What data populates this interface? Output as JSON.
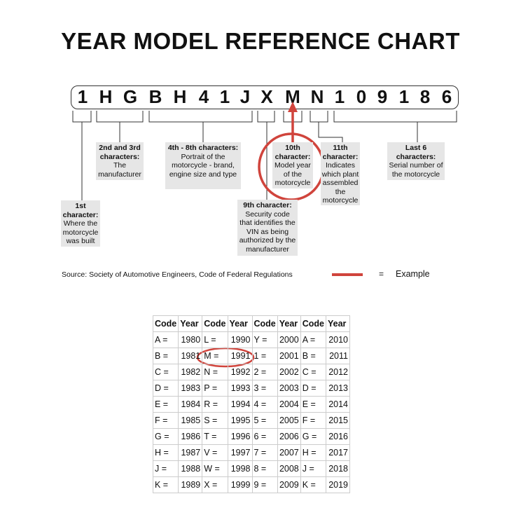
{
  "title": "YEAR MODEL REFERENCE CHART",
  "vin": [
    "1",
    "H",
    "G",
    "B",
    "H",
    "4",
    "1",
    "J",
    "X",
    "M",
    "N",
    "1",
    "0",
    "9",
    "1",
    "8",
    "6"
  ],
  "labels": {
    "first": {
      "head": "1st character:",
      "body": "Where the motorcycle was built"
    },
    "second_third": {
      "head": "2nd and 3rd characters:",
      "body": "The manufacturer"
    },
    "fourth_eighth": {
      "head": "4th - 8th characters:",
      "body": "Portrait of the motorcycle - brand, engine size and type"
    },
    "ninth": {
      "head": "9th character:",
      "body": "Security code that identifies the VIN as being authorized by the manufacturer"
    },
    "tenth": {
      "head": "10th character:",
      "body": "Model year of the motorcycle"
    },
    "eleventh": {
      "head": "11th character:",
      "body": "Indicates which plant assembled the motorcycle"
    },
    "last_six": {
      "head": "Last 6 characters:",
      "body": "Serial number of the motorcycle"
    }
  },
  "source": "Source:  Society of Automotive Engineers, Code of Federal Regulations",
  "legend": {
    "equals": "=",
    "example": "Example",
    "color": "#d0443c"
  },
  "table": {
    "headers": [
      "Code",
      "Year",
      "Code",
      "Year",
      "Code",
      "Year",
      "Code",
      "Year"
    ],
    "rows": [
      [
        "A =",
        "1980",
        "L =",
        "1990",
        "Y =",
        "2000",
        "A =",
        "2010"
      ],
      [
        "B =",
        "1981",
        "M =",
        "1991",
        "1 =",
        "2001",
        "B =",
        "2011"
      ],
      [
        "C =",
        "1982",
        "N =",
        "1992",
        "2 =",
        "2002",
        "C =",
        "2012"
      ],
      [
        "D =",
        "1983",
        "P =",
        "1993",
        "3 =",
        "2003",
        "D =",
        "2013"
      ],
      [
        "E =",
        "1984",
        "R =",
        "1994",
        "4 =",
        "2004",
        "E =",
        "2014"
      ],
      [
        "F =",
        "1985",
        "S =",
        "1995",
        "5 =",
        "2005",
        "F =",
        "2015"
      ],
      [
        "G =",
        "1986",
        "T =",
        "1996",
        "6 =",
        "2006",
        "G =",
        "2016"
      ],
      [
        "H =",
        "1987",
        "V =",
        "1997",
        "7 =",
        "2007",
        "H =",
        "2017"
      ],
      [
        "J =",
        "1988",
        "W =",
        "1998",
        "8 =",
        "2008",
        "J =",
        "2018"
      ],
      [
        "K =",
        "1989",
        "X =",
        "1999",
        "9 =",
        "2009",
        "K =",
        "2019"
      ]
    ]
  }
}
